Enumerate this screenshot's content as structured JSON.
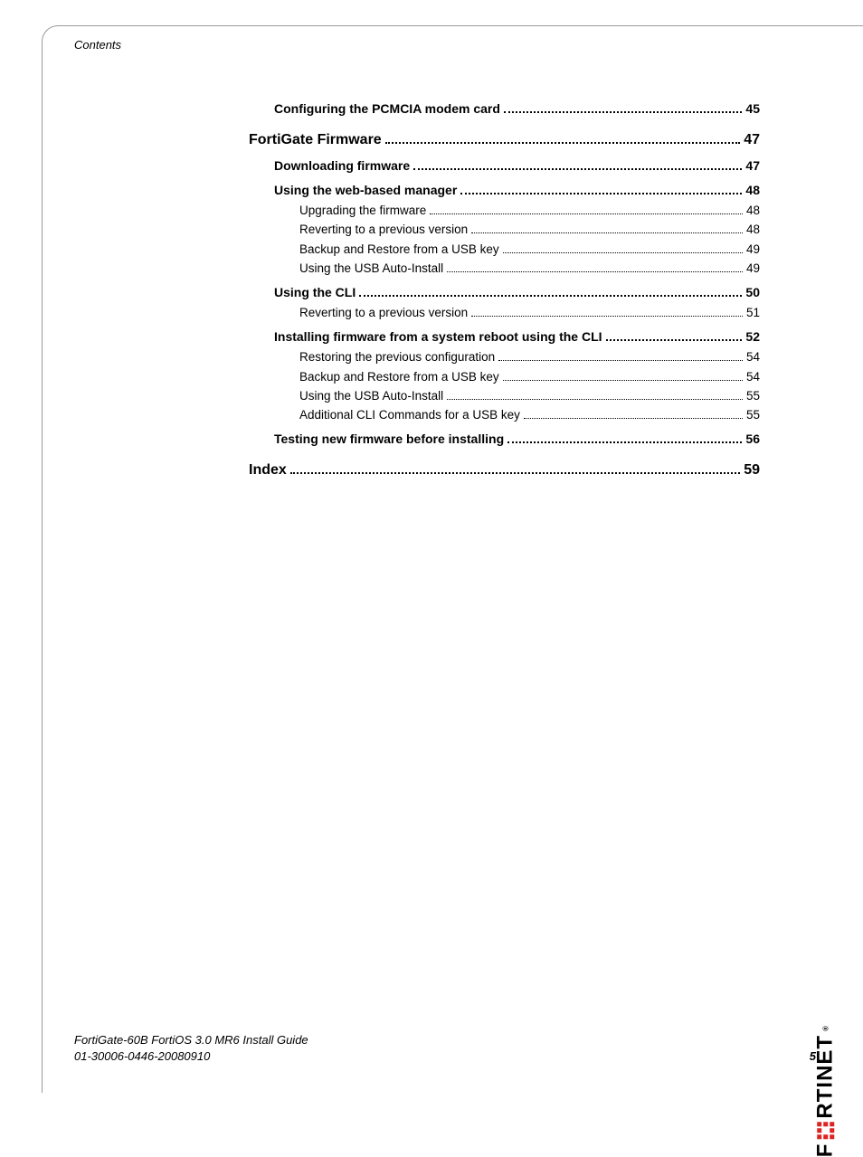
{
  "header": {
    "label": "Contents"
  },
  "toc": [
    {
      "level": 1,
      "text": "Configuring the PCMCIA modem card",
      "page": "45"
    },
    {
      "level": 0,
      "text": "FortiGate Firmware",
      "page": "47"
    },
    {
      "level": 1,
      "text": "Downloading firmware",
      "page": "47"
    },
    {
      "level": 1,
      "text": "Using the web-based manager",
      "page": "48"
    },
    {
      "level": 2,
      "text": "Upgrading the firmware",
      "page": "48"
    },
    {
      "level": 2,
      "text": "Reverting to a previous version",
      "page": "48"
    },
    {
      "level": 2,
      "text": "Backup and Restore from a USB key",
      "page": "49"
    },
    {
      "level": 2,
      "text": "Using the USB Auto-Install",
      "page": "49"
    },
    {
      "level": 1,
      "text": "Using the CLI",
      "page": "50"
    },
    {
      "level": 2,
      "text": "Reverting to a previous version",
      "page": "51"
    },
    {
      "level": 1,
      "text": "Installing firmware from a system reboot using the CLI",
      "page": "52"
    },
    {
      "level": 2,
      "text": "Restoring the previous configuration",
      "page": "54"
    },
    {
      "level": 2,
      "text": "Backup and Restore from a USB key",
      "page": "54"
    },
    {
      "level": 2,
      "text": "Using the USB Auto-Install",
      "page": "55"
    },
    {
      "level": 2,
      "text": "Additional CLI Commands for a USB key",
      "page": "55"
    },
    {
      "level": 1,
      "text": "Testing new firmware before installing",
      "page": "56"
    },
    {
      "level": 0,
      "text": "Index",
      "page": "59"
    }
  ],
  "footer": {
    "line1": "FortiGate-60B FortiOS 3.0 MR6 Install Guide",
    "line2": "01-30006-0446-20080910",
    "page_number": "5"
  },
  "brand": {
    "text_left": "F",
    "text_right": "RTINET",
    "dot": "®"
  },
  "colors": {
    "text": "#000000",
    "rule": "#999999",
    "brand_red": "#d22222",
    "background": "#ffffff"
  },
  "typography": {
    "body_font": "Arial, Helvetica, sans-serif",
    "header_fontsize_pt": 10,
    "lvl0_fontsize_pt": 12,
    "lvl1_fontsize_pt": 10.5,
    "lvl2_fontsize_pt": 10,
    "footer_fontsize_pt": 10
  }
}
